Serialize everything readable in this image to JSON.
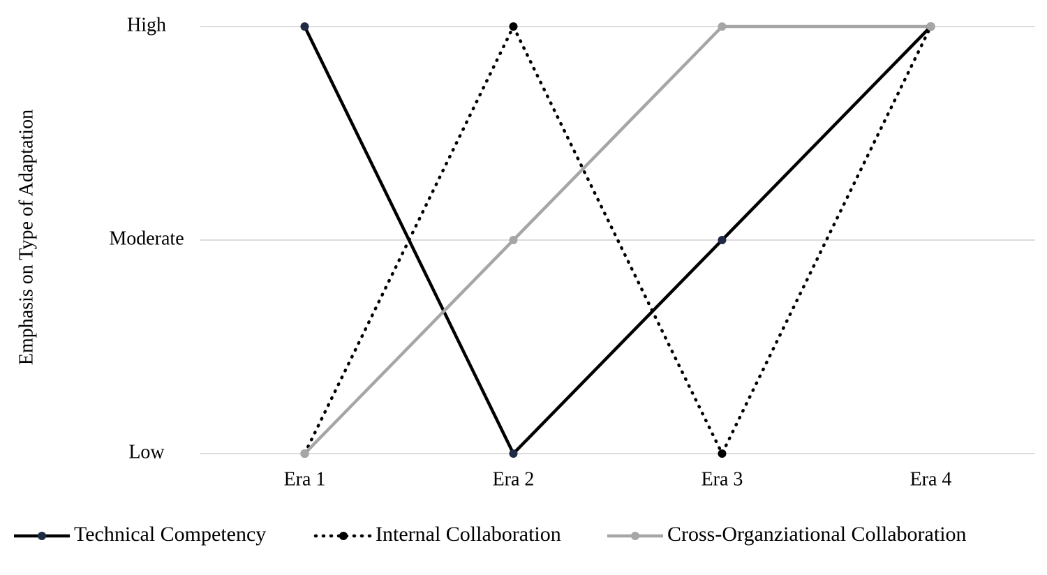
{
  "chart_data": {
    "type": "line",
    "y_label": "Emphasis on Type of Adaptation",
    "categories": [
      "Era 1",
      "Era 2",
      "Era 3",
      "Era 4"
    ],
    "ylim": [
      1,
      3
    ],
    "yticks": [
      {
        "value": 1,
        "label": "Low"
      },
      {
        "value": 2,
        "label": "Moderate"
      },
      {
        "value": 3,
        "label": "High"
      }
    ],
    "grid": true,
    "legend": "bottom",
    "series": [
      {
        "name": "Technical Competency",
        "color": "#000000",
        "marker_color": "#1f2a44",
        "line_style": "solid",
        "values": [
          3,
          1,
          2,
          3
        ]
      },
      {
        "name": "Internal Collaboration",
        "color": "#000000",
        "marker_color": "#000000",
        "line_style": "dotted",
        "values": [
          1,
          3,
          1,
          3
        ]
      },
      {
        "name": "Cross-Organziational Collaboration",
        "color": "#a6a6a6",
        "marker_color": "#a6a6a6",
        "line_style": "solid",
        "values": [
          1,
          2,
          3,
          3
        ]
      }
    ]
  }
}
